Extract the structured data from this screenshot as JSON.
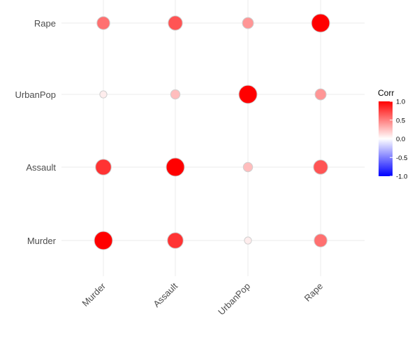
{
  "chart_data": {
    "type": "scatter",
    "subtype": "correlation-matrix-bubble",
    "title": "",
    "xlabel": "",
    "ylabel": "",
    "variables_x": [
      "Murder",
      "Assault",
      "UrbanPop",
      "Rape"
    ],
    "variables_y": [
      "Murder",
      "Assault",
      "UrbanPop",
      "Rape"
    ],
    "cells": [
      {
        "x": "Murder",
        "y": "Murder",
        "corr": 1.0
      },
      {
        "x": "Assault",
        "y": "Murder",
        "corr": 0.8
      },
      {
        "x": "UrbanPop",
        "y": "Murder",
        "corr": 0.07
      },
      {
        "x": "Rape",
        "y": "Murder",
        "corr": 0.56
      },
      {
        "x": "Murder",
        "y": "Assault",
        "corr": 0.8
      },
      {
        "x": "Assault",
        "y": "Assault",
        "corr": 1.0
      },
      {
        "x": "UrbanPop",
        "y": "Assault",
        "corr": 0.26
      },
      {
        "x": "Rape",
        "y": "Assault",
        "corr": 0.67
      },
      {
        "x": "Murder",
        "y": "UrbanPop",
        "corr": 0.07
      },
      {
        "x": "Assault",
        "y": "UrbanPop",
        "corr": 0.26
      },
      {
        "x": "UrbanPop",
        "y": "UrbanPop",
        "corr": 1.0
      },
      {
        "x": "Rape",
        "y": "UrbanPop",
        "corr": 0.41
      },
      {
        "x": "Murder",
        "y": "Rape",
        "corr": 0.56
      },
      {
        "x": "Assault",
        "y": "Rape",
        "corr": 0.67
      },
      {
        "x": "UrbanPop",
        "y": "Rape",
        "corr": 0.41
      },
      {
        "x": "Rape",
        "y": "Rape",
        "corr": 1.0
      }
    ],
    "legend": {
      "title": "Corr",
      "placement": "right",
      "limits": [
        -1.0,
        1.0
      ],
      "ticks": [
        1.0,
        0.5,
        0.0,
        -0.5,
        -1.0
      ],
      "tick_labels": [
        "1.0",
        "0.5",
        "0.0",
        "-0.5",
        "-1.0"
      ],
      "low_color": "#0000ff",
      "mid_color": "#ffffff",
      "high_color": "#ff0000"
    },
    "size_encodes": "absolute correlation",
    "grid": true
  }
}
